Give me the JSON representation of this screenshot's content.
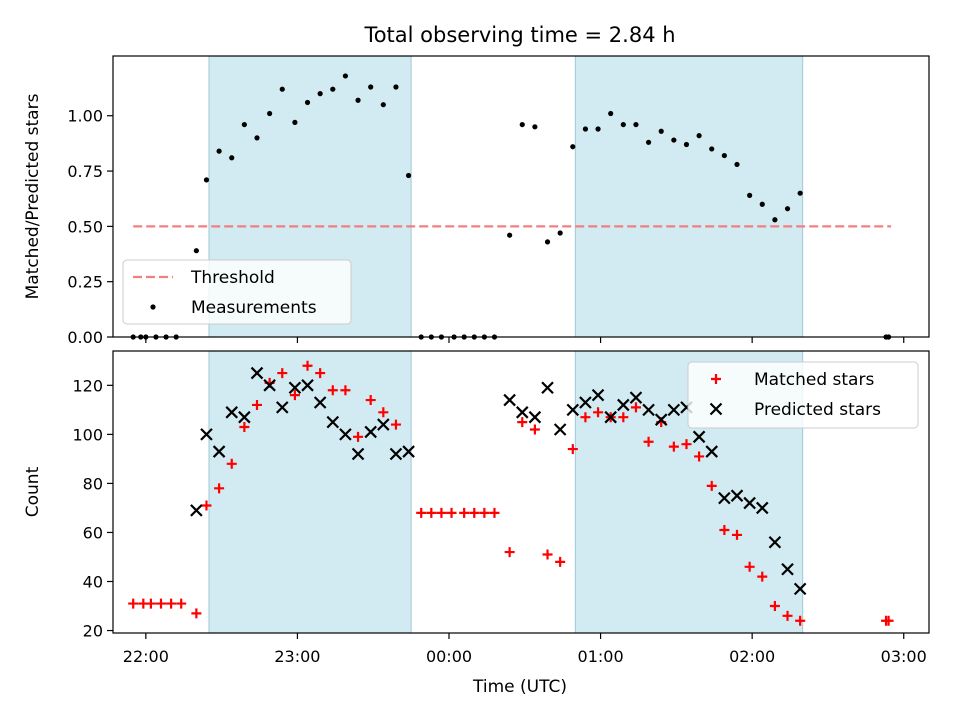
{
  "chart_data": [
    {
      "type": "scatter",
      "title": "Total observing time = 2.84 h",
      "xlabel": "",
      "ylabel": "Matched/Predicted stars",
      "xlim": [
        "21:47",
        "03:10"
      ],
      "ylim": [
        0,
        1.27
      ],
      "yticks": [
        "0.00",
        "0.25",
        "0.50",
        "0.75",
        "1.00"
      ],
      "x_tick_labels": [],
      "shaded_intervals": [
        [
          "22:25",
          "23:45"
        ],
        [
          "00:50",
          "02:20"
        ]
      ],
      "shade_color": "#add8e6",
      "legend_position": "lower left",
      "threshold": {
        "name": "Threshold",
        "value": 0.5,
        "x_range": [
          "21:55",
          "02:55"
        ],
        "color": "#f08080"
      },
      "series": [
        {
          "name": "Measurements",
          "color": "#000000",
          "points": [
            [
              "21:55",
              0.0
            ],
            [
              "21:58",
              0.0
            ],
            [
              "22:00",
              0.0
            ],
            [
              "22:04",
              0.0
            ],
            [
              "22:08",
              0.0
            ],
            [
              "22:12",
              0.0
            ],
            [
              "22:20",
              0.39
            ],
            [
              "22:24",
              0.71
            ],
            [
              "22:29",
              0.84
            ],
            [
              "22:34",
              0.81
            ],
            [
              "22:39",
              0.96
            ],
            [
              "22:44",
              0.9
            ],
            [
              "22:49",
              1.01
            ],
            [
              "22:54",
              1.12
            ],
            [
              "22:59",
              0.97
            ],
            [
              "23:04",
              1.06
            ],
            [
              "23:09",
              1.1
            ],
            [
              "23:14",
              1.12
            ],
            [
              "23:19",
              1.18
            ],
            [
              "23:24",
              1.07
            ],
            [
              "23:29",
              1.13
            ],
            [
              "23:34",
              1.05
            ],
            [
              "23:39",
              1.13
            ],
            [
              "23:44",
              0.73
            ],
            [
              "23:49",
              0.0
            ],
            [
              "23:53",
              0.0
            ],
            [
              "23:57",
              0.0
            ],
            [
              "00:02",
              0.0
            ],
            [
              "00:06",
              0.0
            ],
            [
              "00:10",
              0.0
            ],
            [
              "00:14",
              0.0
            ],
            [
              "00:18",
              0.0
            ],
            [
              "00:24",
              0.46
            ],
            [
              "00:29",
              0.96
            ],
            [
              "00:34",
              0.95
            ],
            [
              "00:39",
              0.43
            ],
            [
              "00:44",
              0.47
            ],
            [
              "00:49",
              0.86
            ],
            [
              "00:54",
              0.94
            ],
            [
              "00:59",
              0.94
            ],
            [
              "01:04",
              1.01
            ],
            [
              "01:09",
              0.96
            ],
            [
              "01:14",
              0.96
            ],
            [
              "01:19",
              0.88
            ],
            [
              "01:24",
              0.93
            ],
            [
              "01:29",
              0.89
            ],
            [
              "01:34",
              0.87
            ],
            [
              "01:39",
              0.91
            ],
            [
              "01:44",
              0.85
            ],
            [
              "01:49",
              0.82
            ],
            [
              "01:54",
              0.78
            ],
            [
              "01:59",
              0.64
            ],
            [
              "02:04",
              0.6
            ],
            [
              "02:09",
              0.53
            ],
            [
              "02:14",
              0.58
            ],
            [
              "02:19",
              0.65
            ],
            [
              "02:53",
              0.0
            ],
            [
              "02:54",
              0.0
            ]
          ]
        }
      ]
    },
    {
      "type": "scatter",
      "title": "",
      "xlabel": "Time (UTC)",
      "ylabel": "Count",
      "xlim": [
        "21:47",
        "03:10"
      ],
      "ylim": [
        19,
        134
      ],
      "yticks": [
        "20",
        "40",
        "60",
        "80",
        "100",
        "120"
      ],
      "x_tick_labels": [
        "22:00",
        "23:00",
        "00:00",
        "01:00",
        "02:00",
        "03:00"
      ],
      "shaded_intervals": [
        [
          "22:25",
          "23:45"
        ],
        [
          "00:50",
          "02:20"
        ]
      ],
      "shade_color": "#add8e6",
      "legend_position": "upper right",
      "series": [
        {
          "name": "Matched stars",
          "marker": "+",
          "color": "#ff0000",
          "points": [
            [
              "21:55",
              31
            ],
            [
              "21:59",
              31
            ],
            [
              "22:02",
              31
            ],
            [
              "22:06",
              31
            ],
            [
              "22:10",
              31
            ],
            [
              "22:14",
              31
            ],
            [
              "22:20",
              27
            ],
            [
              "22:24",
              71
            ],
            [
              "22:29",
              78
            ],
            [
              "22:34",
              88
            ],
            [
              "22:39",
              103
            ],
            [
              "22:44",
              112
            ],
            [
              "22:49",
              121
            ],
            [
              "22:54",
              125
            ],
            [
              "22:59",
              116
            ],
            [
              "23:04",
              128
            ],
            [
              "23:09",
              125
            ],
            [
              "23:14",
              118
            ],
            [
              "23:19",
              118
            ],
            [
              "23:24",
              99
            ],
            [
              "23:29",
              114
            ],
            [
              "23:34",
              109
            ],
            [
              "23:39",
              104
            ],
            [
              "23:49",
              68
            ],
            [
              "23:53",
              68
            ],
            [
              "23:57",
              68
            ],
            [
              "00:01",
              68
            ],
            [
              "00:06",
              68
            ],
            [
              "00:10",
              68
            ],
            [
              "00:14",
              68
            ],
            [
              "00:18",
              68
            ],
            [
              "00:24",
              52
            ],
            [
              "00:29",
              105
            ],
            [
              "00:34",
              102
            ],
            [
              "00:39",
              51
            ],
            [
              "00:44",
              48
            ],
            [
              "00:49",
              94
            ],
            [
              "00:54",
              107
            ],
            [
              "00:59",
              109
            ],
            [
              "01:04",
              107
            ],
            [
              "01:09",
              107
            ],
            [
              "01:14",
              111
            ],
            [
              "01:19",
              97
            ],
            [
              "01:24",
              105
            ],
            [
              "01:29",
              95
            ],
            [
              "01:34",
              96
            ],
            [
              "01:39",
              91
            ],
            [
              "01:44",
              79
            ],
            [
              "01:49",
              61
            ],
            [
              "01:54",
              59
            ],
            [
              "01:59",
              46
            ],
            [
              "02:04",
              42
            ],
            [
              "02:09",
              30
            ],
            [
              "02:14",
              26
            ],
            [
              "02:19",
              24
            ],
            [
              "02:53",
              24
            ],
            [
              "02:54",
              24
            ]
          ]
        },
        {
          "name": "Predicted stars",
          "marker": "x",
          "color": "#000000",
          "points": [
            [
              "22:20",
              69
            ],
            [
              "22:24",
              100
            ],
            [
              "22:29",
              93
            ],
            [
              "22:34",
              109
            ],
            [
              "22:39",
              107
            ],
            [
              "22:44",
              125
            ],
            [
              "22:49",
              120
            ],
            [
              "22:54",
              111
            ],
            [
              "22:59",
              119
            ],
            [
              "23:04",
              120
            ],
            [
              "23:09",
              113
            ],
            [
              "23:14",
              105
            ],
            [
              "23:19",
              100
            ],
            [
              "23:24",
              92
            ],
            [
              "23:29",
              101
            ],
            [
              "23:34",
              104
            ],
            [
              "23:39",
              92
            ],
            [
              "23:44",
              93
            ],
            [
              "00:24",
              114
            ],
            [
              "00:29",
              109
            ],
            [
              "00:34",
              107
            ],
            [
              "00:39",
              119
            ],
            [
              "00:44",
              102
            ],
            [
              "00:49",
              110
            ],
            [
              "00:54",
              113
            ],
            [
              "00:59",
              116
            ],
            [
              "01:04",
              107
            ],
            [
              "01:09",
              112
            ],
            [
              "01:14",
              115
            ],
            [
              "01:19",
              110
            ],
            [
              "01:24",
              106
            ],
            [
              "01:29",
              110
            ],
            [
              "01:34",
              111
            ],
            [
              "01:39",
              99
            ],
            [
              "01:44",
              93
            ],
            [
              "01:49",
              74
            ],
            [
              "01:54",
              75
            ],
            [
              "01:59",
              72
            ],
            [
              "02:04",
              70
            ],
            [
              "02:09",
              56
            ],
            [
              "02:14",
              45
            ],
            [
              "02:19",
              37
            ]
          ]
        }
      ]
    }
  ]
}
